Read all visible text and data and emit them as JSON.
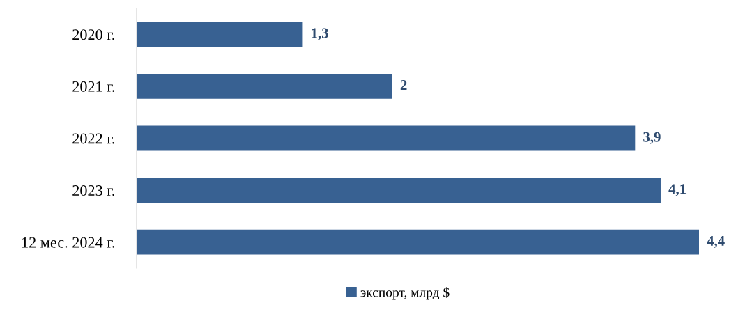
{
  "chart_data": {
    "type": "bar",
    "orientation": "horizontal",
    "categories": [
      "2020 г.",
      "2021 г.",
      "2022 г.",
      "2023 г.",
      "12 мес. 2024 г."
    ],
    "series": [
      {
        "name": "экспорт, млрд $",
        "color": "#386192",
        "values": [
          1.3,
          2,
          3.9,
          4.1,
          4.4
        ],
        "value_labels": [
          "1,3",
          "2",
          "3,9",
          "4,1",
          "4,4"
        ]
      }
    ],
    "legend": "bottom",
    "grid": false
  }
}
